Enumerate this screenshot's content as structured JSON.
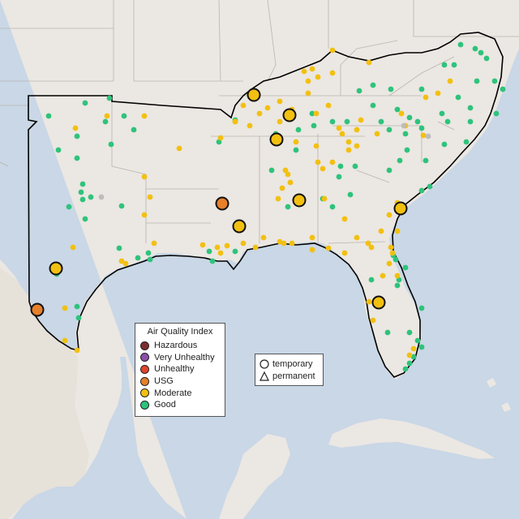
{
  "legend": {
    "title": "Air Quality Index",
    "items": [
      {
        "label": "Hazardous",
        "color": "#7e2d2d"
      },
      {
        "label": "Very Unhealthy",
        "color": "#8b4fa8"
      },
      {
        "label": "Unhealthy",
        "color": "#e0452b"
      },
      {
        "label": "USG",
        "color": "#e6802b"
      },
      {
        "label": "Moderate",
        "color": "#f2c011"
      },
      {
        "label": "Good",
        "color": "#2ec37c"
      }
    ]
  },
  "shape_legend": {
    "items": [
      {
        "label": "temporary",
        "icon": "circle-icon"
      },
      {
        "label": "permanent",
        "icon": "triangle-icon"
      }
    ]
  },
  "colors": {
    "ocean": "#c9d7e6",
    "land": "#ebe7e2",
    "region_outline": "#000000",
    "state_border": "#b9b4af"
  }
}
